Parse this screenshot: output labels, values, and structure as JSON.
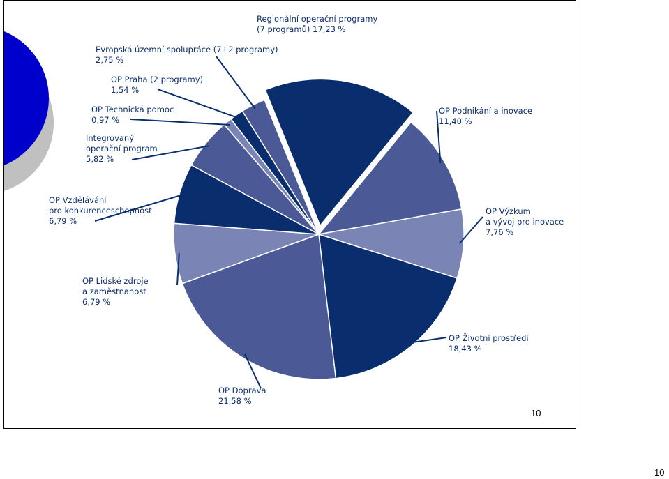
{
  "chart_data": {
    "type": "pie",
    "slices": [
      {
        "label": [
          "Regionální operační programy",
          "(7 programů) 17,23 %"
        ],
        "value": 17.23,
        "color": "#0a2d6d",
        "exploded": true
      },
      {
        "label": [
          "OP Podnikání a inovace",
          "11,40 %"
        ],
        "value": 11.4,
        "color": "#4b5a96"
      },
      {
        "label": [
          "OP Výzkum",
          "a vývoj pro inovace",
          "7,76 %"
        ],
        "value": 7.76,
        "color": "#7a85b6"
      },
      {
        "label": [
          "OP Životní prostředí",
          "18,43 %"
        ],
        "value": 18.43,
        "color": "#0a2d6d"
      },
      {
        "label": [
          "OP Doprava",
          "21,58 %"
        ],
        "value": 21.58,
        "color": "#4b5a96"
      },
      {
        "label": [
          "OP Lidské zdroje",
          "a zaměstnanost",
          "6,79 %"
        ],
        "value": 6.79,
        "color": "#7a85b6"
      },
      {
        "label": [
          "OP Vzdělávání",
          "pro konkurenceschopnost",
          "6,79 %"
        ],
        "value": 6.79,
        "color": "#0a2d6d"
      },
      {
        "label": [
          "Integrovaný",
          "operační program",
          "5,82 %"
        ],
        "value": 5.82,
        "color": "#4b5a96"
      },
      {
        "label": [
          "OP Technická pomoc",
          "0,97 %"
        ],
        "value": 0.97,
        "color": "#7a85b6"
      },
      {
        "label": [
          "OP Praha (2 programy)",
          "1,54 %"
        ],
        "value": 1.54,
        "color": "#0a2d6d"
      },
      {
        "label": [
          "Evropská územní spolupráce (7+2 programy)",
          "2,75 %"
        ],
        "value": 2.75,
        "color": "#4b5a96"
      }
    ]
  },
  "slide_page_number": "10",
  "page_number": "10",
  "decor_colors": {
    "circle": "#0000cc",
    "circle_shadow": "#c0c0c0"
  }
}
